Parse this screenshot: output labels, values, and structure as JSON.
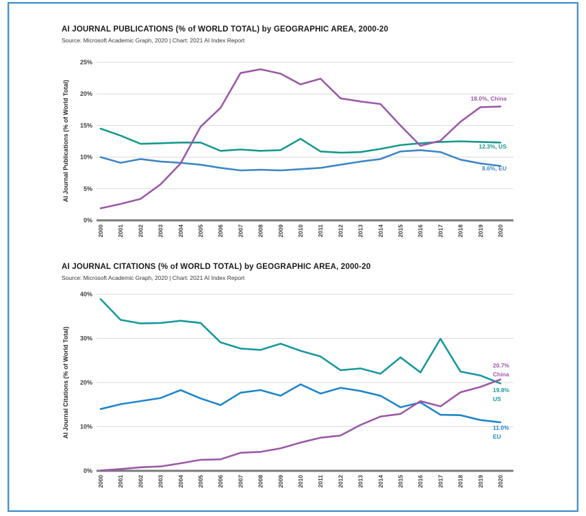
{
  "page": {
    "background": "#ffffff",
    "frame_border_color": "#4191cf"
  },
  "chart_data": [
    {
      "type": "line",
      "title": "AI JOURNAL PUBLICATIONS (% of WORLD TOTAL) by GEOGRAPHIC AREA, 2000-20",
      "source": "Source: Microsoft Academic Graph, 2020 | Chart: 2021 AI Index Report",
      "ylabel": "AI Journal Publications (% of World Total)",
      "ylim": [
        0,
        25
      ],
      "yticks": [
        0,
        5,
        10,
        15,
        20,
        25
      ],
      "ytick_suffix": "%",
      "grid": "horizontal",
      "legend_position": "right-end-labels",
      "x": [
        2000,
        2001,
        2002,
        2003,
        2004,
        2005,
        2006,
        2007,
        2008,
        2009,
        2010,
        2011,
        2012,
        2013,
        2014,
        2015,
        2016,
        2017,
        2018,
        2019,
        2020
      ],
      "series": [
        {
          "name": "EU",
          "color": "#3e86c6",
          "end_label": [
            "8.6%, EU"
          ],
          "values": [
            10.0,
            9.1,
            9.7,
            9.3,
            9.1,
            8.8,
            8.3,
            7.9,
            8.0,
            7.9,
            8.1,
            8.3,
            8.8,
            9.3,
            9.7,
            10.9,
            11.1,
            10.8,
            9.6,
            9.0,
            8.6
          ]
        },
        {
          "name": "US",
          "color": "#16988c",
          "end_label": [
            "12.3%, US"
          ],
          "values": [
            14.5,
            13.4,
            12.1,
            12.2,
            12.3,
            12.3,
            11.0,
            11.2,
            11.0,
            11.1,
            12.9,
            10.9,
            10.7,
            10.8,
            11.3,
            11.9,
            12.2,
            12.4,
            12.5,
            12.4,
            12.3
          ]
        },
        {
          "name": "China",
          "color": "#9b59a8",
          "end_label": [
            "18.0%, China"
          ],
          "values": [
            1.9,
            2.6,
            3.4,
            5.7,
            9.0,
            14.8,
            17.8,
            23.3,
            23.9,
            23.2,
            21.5,
            22.4,
            19.3,
            18.8,
            18.4,
            15.0,
            11.8,
            12.6,
            15.6,
            17.9,
            18.0
          ]
        }
      ]
    },
    {
      "type": "line",
      "title": "AI JOURNAL CITATIONS (% of WORLD TOTAL) by GEOGRAPHIC AREA, 2000-20",
      "source": "Source: Microsoft Academic Graph, 2020 | Chart: 2021 AI Index Report",
      "ylabel": "AI Journal Citations (% of World Total)",
      "ylim": [
        0,
        40
      ],
      "yticks": [
        0,
        10,
        20,
        30,
        40
      ],
      "ytick_suffix": "%",
      "grid": "horizontal",
      "legend_position": "right-end-labels",
      "x": [
        2000,
        2001,
        2002,
        2003,
        2004,
        2005,
        2006,
        2007,
        2008,
        2009,
        2010,
        2011,
        2012,
        2013,
        2014,
        2015,
        2016,
        2017,
        2018,
        2019,
        2020
      ],
      "series": [
        {
          "name": "EU",
          "color": "#1e85cc",
          "end_label": [
            "11.0%",
            "EU"
          ],
          "values": [
            14.0,
            15.1,
            15.8,
            16.5,
            18.3,
            16.4,
            14.9,
            17.7,
            18.3,
            17.0,
            19.6,
            17.5,
            18.8,
            18.1,
            17.0,
            14.4,
            15.5,
            12.7,
            12.6,
            11.5,
            11.0
          ]
        },
        {
          "name": "US",
          "color": "#16989c",
          "end_label": [
            "19.8%",
            "US"
          ],
          "values": [
            38.9,
            34.2,
            33.4,
            33.5,
            34.0,
            33.5,
            29.1,
            27.7,
            27.4,
            28.8,
            27.2,
            25.9,
            22.8,
            23.2,
            22.0,
            25.7,
            22.3,
            29.9,
            22.5,
            21.6,
            19.8
          ]
        },
        {
          "name": "China",
          "color": "#9b59a8",
          "end_label": [
            "20.7%",
            "China"
          ],
          "values": [
            0.1,
            0.4,
            0.8,
            1.0,
            1.7,
            2.5,
            2.6,
            4.1,
            4.3,
            5.1,
            6.4,
            7.5,
            8.0,
            10.4,
            12.3,
            12.9,
            15.8,
            14.6,
            17.8,
            19.0,
            20.7
          ]
        }
      ]
    }
  ]
}
